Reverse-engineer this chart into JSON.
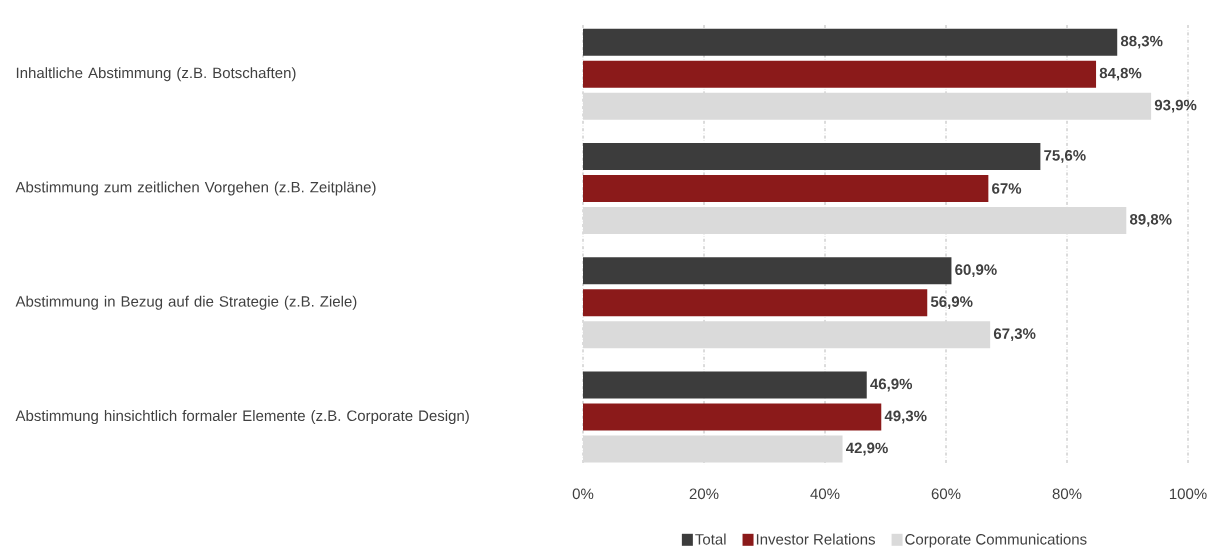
{
  "chart_data": {
    "type": "bar",
    "orientation": "horizontal",
    "categories": [
      "Inhaltliche Abstimmung (z.B. Botschaften)",
      "Abstimmung zum zeitlichen Vorgehen (z.B. Zeitpläne)",
      "Abstimmung in Bezug auf die Strategie (z.B. Ziele)",
      "Abstimmung hinsichtlich formaler Elemente (z.B. Corporate Design)"
    ],
    "series": [
      {
        "name": "Total",
        "color": "#3c3c3c",
        "values": [
          88.3,
          75.6,
          60.9,
          46.9
        ],
        "value_labels": [
          "88,3%",
          "75,6%",
          "60,9%",
          "46,9%"
        ]
      },
      {
        "name": "Investor Relations",
        "color": "#8b1a1a",
        "values": [
          84.8,
          67,
          56.9,
          49.3
        ],
        "value_labels": [
          "84,8%",
          "67%",
          "56,9%",
          "49,3%"
        ]
      },
      {
        "name": "Corporate Communications",
        "color": "#dadada",
        "values": [
          93.9,
          89.8,
          67.3,
          42.9
        ],
        "value_labels": [
          "93,9%",
          "89,8%",
          "67,3%",
          "42,9%"
        ]
      }
    ],
    "xlim": [
      0,
      100
    ],
    "xticks": [
      {
        "value": 0,
        "label": "0%"
      },
      {
        "value": 20,
        "label": "20%"
      },
      {
        "value": 40,
        "label": "40%"
      },
      {
        "value": 60,
        "label": "60%"
      },
      {
        "value": 80,
        "label": "80%"
      },
      {
        "value": 100,
        "label": "100%"
      }
    ],
    "grid": "x",
    "legend": "bottom"
  }
}
